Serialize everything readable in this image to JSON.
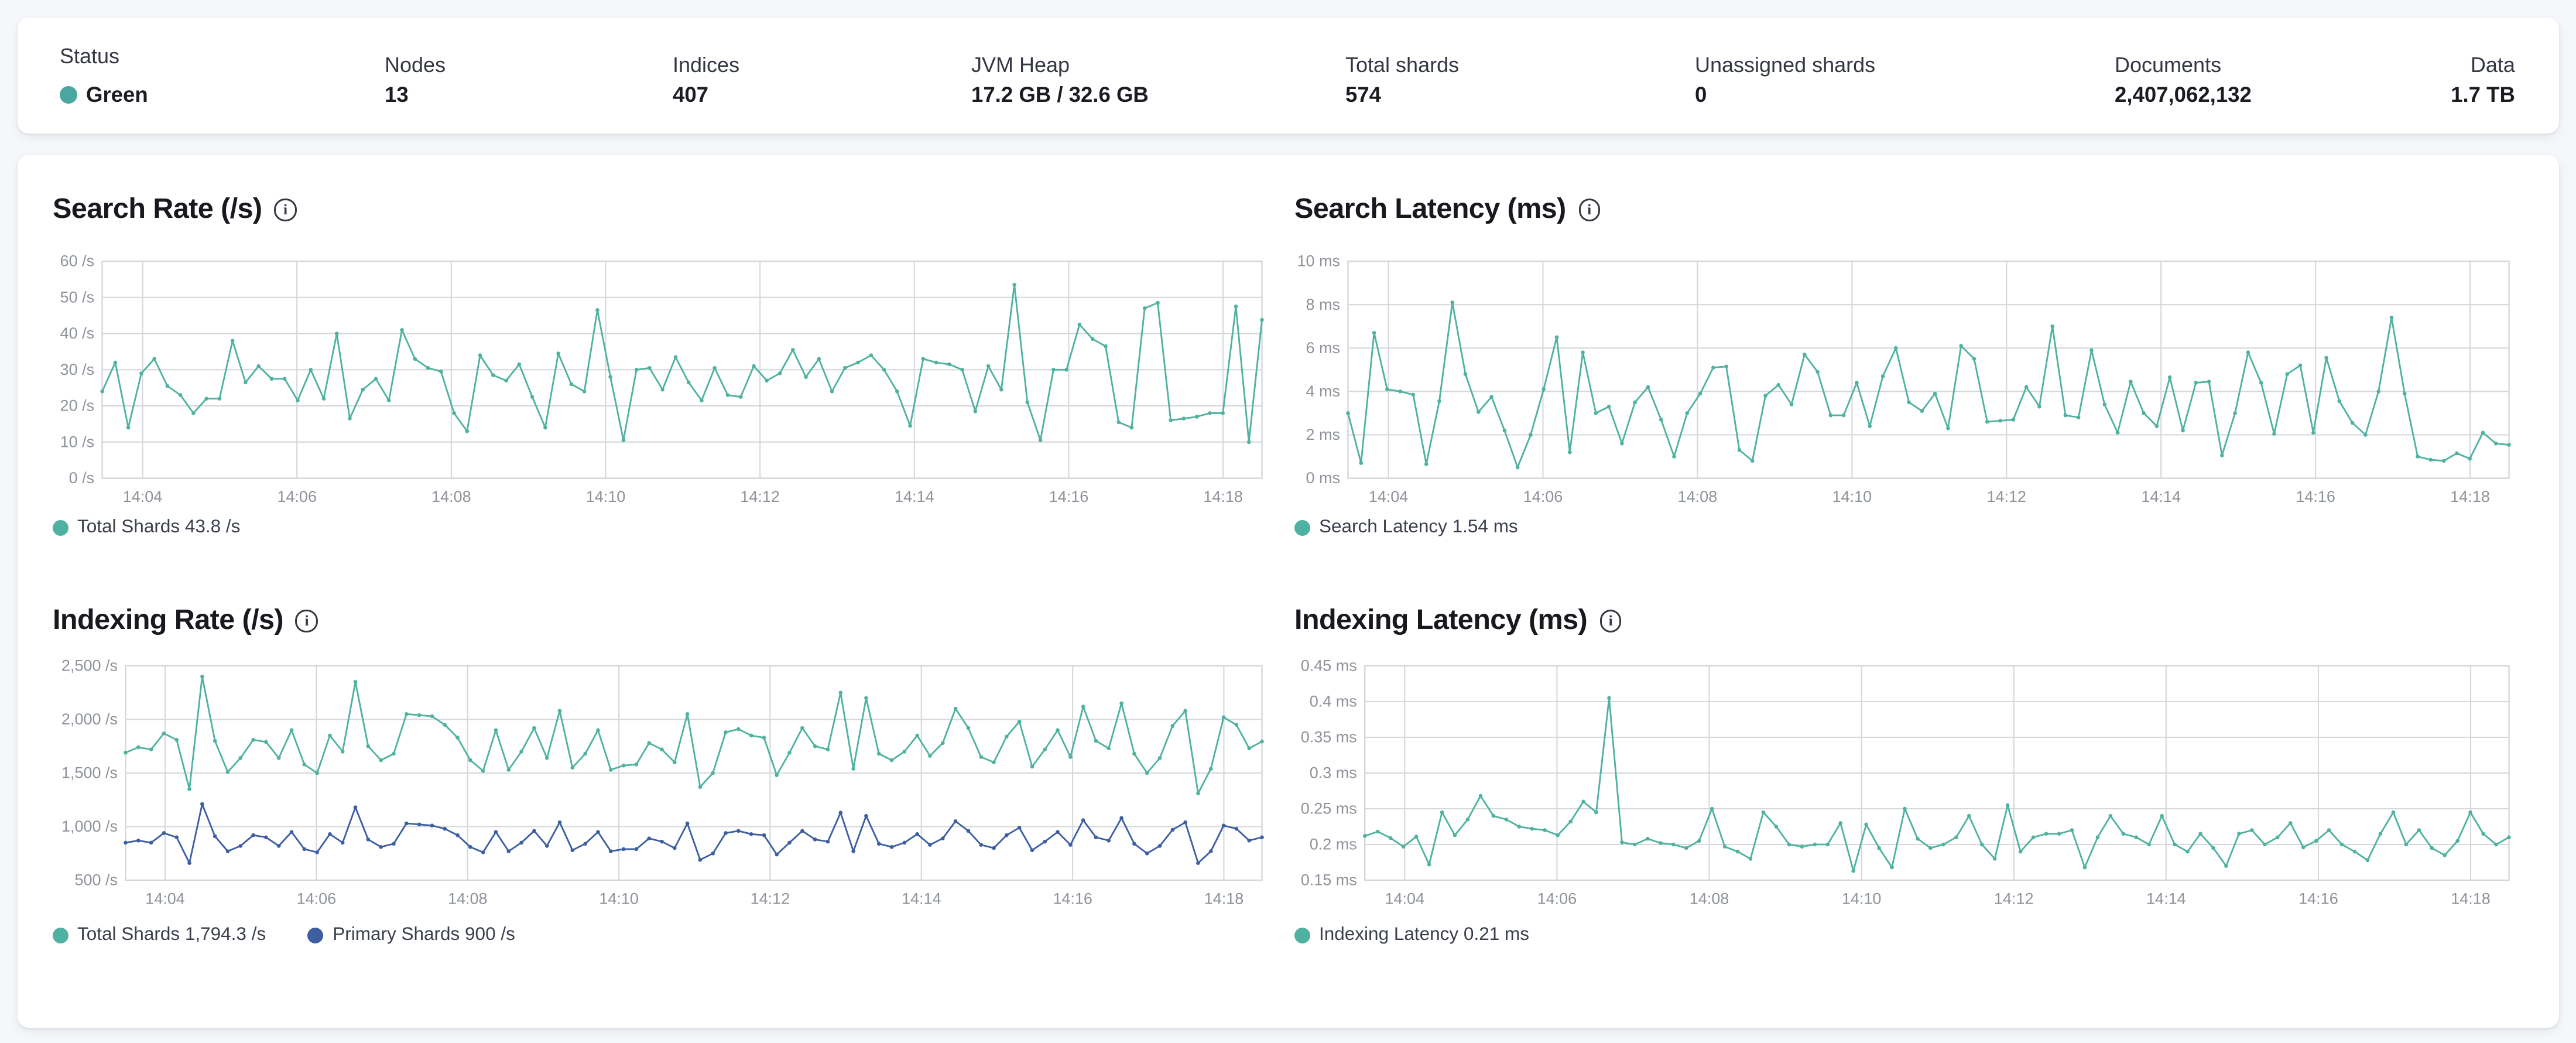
{
  "cluster_stats": {
    "items": [
      {
        "label": "Status",
        "value": "Green",
        "type": "health",
        "dot_color": "#4aa7a0"
      },
      {
        "label": "Nodes",
        "value": "13"
      },
      {
        "label": "Indices",
        "value": "407"
      },
      {
        "label": "JVM Heap",
        "value": "17.2 GB / 32.6 GB"
      },
      {
        "label": "Total shards",
        "value": "574"
      },
      {
        "label": "Unassigned shards",
        "value": "0"
      },
      {
        "label": "Documents",
        "value": "2,407,062,132"
      },
      {
        "label": "Data",
        "value": "1.7 TB"
      }
    ]
  },
  "colors": {
    "teal": "#4fb2a0",
    "blue": "#3d5fa2",
    "health_green": "#4aa7a0",
    "grid": "#d5d7da",
    "axis_text": "#8e9299",
    "page_bg": "#f5f7fa",
    "panel_bg": "#ffffff"
  },
  "chart_data": [
    {
      "id": "search-rate",
      "type": "line",
      "title": "Search Rate (/s)",
      "info_icon": "i",
      "ylim": [
        0,
        60
      ],
      "y_ticks": [
        {
          "v": 60,
          "label": "60 /s"
        },
        {
          "v": 50,
          "label": "50 /s"
        },
        {
          "v": 40,
          "label": "40 /s"
        },
        {
          "v": 30,
          "label": "30 /s"
        },
        {
          "v": 20,
          "label": "20 /s"
        },
        {
          "v": 10,
          "label": "10 /s"
        },
        {
          "v": 0,
          "label": "0 /s"
        }
      ],
      "x_tick_labels": [
        "14:04",
        "14:06",
        "14:08",
        "14:10",
        "14:12",
        "14:14",
        "14:16",
        "14:18"
      ],
      "series": [
        {
          "name": "Total Shards",
          "color": "#4fb2a0",
          "current": "43.8 /s",
          "values": [
            24,
            32,
            14,
            29,
            33,
            25.5,
            23,
            18,
            22,
            22,
            38,
            26.5,
            31,
            27.5,
            27.5,
            21.5,
            30,
            22,
            40,
            16.5,
            24.5,
            27.5,
            21.5,
            41,
            33,
            30.5,
            29.5,
            18,
            13,
            34,
            28.5,
            27,
            31.5,
            22.5,
            14,
            34.5,
            26,
            24,
            46.5,
            28,
            10.5,
            30,
            30.5,
            24.5,
            33.5,
            26.5,
            21.5,
            30.5,
            23,
            22.5,
            31,
            27,
            29,
            35.5,
            28,
            33,
            24,
            30.5,
            32,
            34,
            30,
            24,
            14.5,
            33,
            32,
            31.5,
            30,
            18.5,
            31,
            24.5,
            53.5,
            21,
            10.5,
            30,
            30,
            42.5,
            38.5,
            36.5,
            15.5,
            14,
            47,
            48.5,
            16,
            16.5,
            17,
            18,
            18,
            47.5,
            10,
            43.8
          ]
        }
      ],
      "legend": [
        {
          "label": "Total Shards 43.8 /s",
          "color": "#4fb2a0"
        }
      ]
    },
    {
      "id": "search-latency",
      "type": "line",
      "title": "Search Latency (ms)",
      "info_icon": "i",
      "ylim": [
        0,
        10
      ],
      "y_ticks": [
        {
          "v": 10,
          "label": "10 ms"
        },
        {
          "v": 8,
          "label": "8 ms"
        },
        {
          "v": 6,
          "label": "6 ms"
        },
        {
          "v": 4,
          "label": "4 ms"
        },
        {
          "v": 2,
          "label": "2 ms"
        },
        {
          "v": 0,
          "label": "0 ms"
        }
      ],
      "x_tick_labels": [
        "14:04",
        "14:06",
        "14:08",
        "14:10",
        "14:12",
        "14:14",
        "14:16",
        "14:18"
      ],
      "series": [
        {
          "name": "Search Latency",
          "color": "#4fb2a0",
          "current": "1.54 ms",
          "values": [
            3,
            0.7,
            6.7,
            4.1,
            4.0,
            3.85,
            0.65,
            3.55,
            8.1,
            4.8,
            3.05,
            3.75,
            2.2,
            0.5,
            2.0,
            4.1,
            6.5,
            1.2,
            5.8,
            3.0,
            3.3,
            1.6,
            3.5,
            4.2,
            2.7,
            1.0,
            3.0,
            3.9,
            5.1,
            5.15,
            1.3,
            0.8,
            3.8,
            4.3,
            3.4,
            5.7,
            4.9,
            2.9,
            2.9,
            4.4,
            2.4,
            4.7,
            6.0,
            3.5,
            3.1,
            3.9,
            2.3,
            6.1,
            5.5,
            2.6,
            2.65,
            2.7,
            4.2,
            3.3,
            7.0,
            2.9,
            2.8,
            5.9,
            3.4,
            2.1,
            4.45,
            3.0,
            2.4,
            4.65,
            2.2,
            4.4,
            4.45,
            1.05,
            3.0,
            5.8,
            4.4,
            2.05,
            4.8,
            5.2,
            2.1,
            5.55,
            3.55,
            2.55,
            2.0,
            4.0,
            7.4,
            3.9,
            1.0,
            0.85,
            0.8,
            1.15,
            0.9,
            2.1,
            1.6,
            1.54
          ]
        }
      ],
      "legend": [
        {
          "label": "Search Latency 1.54 ms",
          "color": "#4fb2a0"
        }
      ]
    },
    {
      "id": "indexing-rate",
      "type": "line",
      "title": "Indexing Rate (/s)",
      "info_icon": "i",
      "ylim": [
        500,
        2500
      ],
      "y_ticks": [
        {
          "v": 2500,
          "label": "2,500 /s"
        },
        {
          "v": 2000,
          "label": "2,000 /s"
        },
        {
          "v": 1500,
          "label": "1,500 /s"
        },
        {
          "v": 1000,
          "label": "1,000 /s"
        },
        {
          "v": 500,
          "label": "500 /s"
        }
      ],
      "x_tick_labels": [
        "14:04",
        "14:06",
        "14:08",
        "14:10",
        "14:12",
        "14:14",
        "14:16",
        "14:18"
      ],
      "series": [
        {
          "name": "Total Shards",
          "color": "#4fb2a0",
          "current": "1,794.3 /s",
          "values": [
            1690,
            1740,
            1720,
            1870,
            1810,
            1350,
            2400,
            1800,
            1510,
            1640,
            1810,
            1790,
            1640,
            1900,
            1580,
            1500,
            1850,
            1700,
            2350,
            1750,
            1620,
            1680,
            2050,
            2040,
            2030,
            1950,
            1830,
            1620,
            1520,
            1900,
            1530,
            1700,
            1920,
            1640,
            2080,
            1550,
            1680,
            1900,
            1530,
            1570,
            1580,
            1780,
            1720,
            1600,
            2050,
            1370,
            1500,
            1880,
            1910,
            1850,
            1830,
            1480,
            1690,
            1920,
            1750,
            1720,
            2250,
            1540,
            2200,
            1680,
            1620,
            1700,
            1850,
            1660,
            1780,
            2100,
            1920,
            1650,
            1600,
            1840,
            1980,
            1560,
            1720,
            1900,
            1650,
            2120,
            1800,
            1730,
            2150,
            1680,
            1500,
            1640,
            1940,
            2080,
            1310,
            1540,
            2020,
            1950,
            1730,
            1794.3
          ]
        },
        {
          "name": "Primary Shards",
          "color": "#3d5fa2",
          "current": "900 /s",
          "values": [
            850,
            870,
            850,
            940,
            900,
            660,
            1210,
            910,
            770,
            820,
            920,
            900,
            820,
            950,
            790,
            760,
            930,
            850,
            1180,
            880,
            810,
            840,
            1030,
            1020,
            1010,
            980,
            920,
            810,
            760,
            950,
            770,
            850,
            960,
            820,
            1040,
            780,
            840,
            950,
            770,
            790,
            790,
            890,
            860,
            800,
            1030,
            690,
            750,
            940,
            960,
            930,
            920,
            740,
            850,
            960,
            880,
            860,
            1130,
            770,
            1100,
            840,
            810,
            850,
            930,
            830,
            890,
            1050,
            960,
            830,
            800,
            920,
            990,
            780,
            860,
            950,
            830,
            1060,
            900,
            870,
            1080,
            840,
            750,
            820,
            970,
            1040,
            660,
            770,
            1010,
            980,
            870,
            900
          ]
        }
      ],
      "legend": [
        {
          "label": "Total Shards 1,794.3 /s",
          "color": "#4fb2a0"
        },
        {
          "label": "Primary Shards 900 /s",
          "color": "#3d5fa2"
        }
      ]
    },
    {
      "id": "indexing-latency",
      "type": "line",
      "title": "Indexing Latency (ms)",
      "info_icon": "i",
      "ylim": [
        0.15,
        0.45
      ],
      "y_ticks": [
        {
          "v": 0.45,
          "label": "0.45 ms"
        },
        {
          "v": 0.4,
          "label": "0.4 ms"
        },
        {
          "v": 0.35,
          "label": "0.35 ms"
        },
        {
          "v": 0.3,
          "label": "0.3 ms"
        },
        {
          "v": 0.25,
          "label": "0.25 ms"
        },
        {
          "v": 0.2,
          "label": "0.2 ms"
        },
        {
          "v": 0.15,
          "label": "0.15 ms"
        }
      ],
      "x_tick_labels": [
        "14:04",
        "14:06",
        "14:08",
        "14:10",
        "14:12",
        "14:14",
        "14:16",
        "14:18"
      ],
      "series": [
        {
          "name": "Indexing Latency",
          "color": "#4fb2a0",
          "current": "0.21 ms",
          "values": [
            0.212,
            0.218,
            0.209,
            0.197,
            0.211,
            0.172,
            0.245,
            0.213,
            0.235,
            0.268,
            0.24,
            0.235,
            0.225,
            0.222,
            0.22,
            0.213,
            0.232,
            0.26,
            0.245,
            0.405,
            0.203,
            0.2,
            0.208,
            0.202,
            0.2,
            0.195,
            0.205,
            0.25,
            0.197,
            0.19,
            0.18,
            0.245,
            0.225,
            0.2,
            0.197,
            0.2,
            0.2,
            0.23,
            0.163,
            0.228,
            0.195,
            0.168,
            0.25,
            0.208,
            0.195,
            0.2,
            0.21,
            0.24,
            0.2,
            0.18,
            0.255,
            0.19,
            0.21,
            0.215,
            0.215,
            0.22,
            0.168,
            0.21,
            0.24,
            0.215,
            0.21,
            0.2,
            0.24,
            0.2,
            0.19,
            0.215,
            0.195,
            0.17,
            0.215,
            0.22,
            0.2,
            0.21,
            0.23,
            0.196,
            0.205,
            0.22,
            0.2,
            0.19,
            0.178,
            0.215,
            0.245,
            0.2,
            0.22,
            0.195,
            0.185,
            0.205,
            0.245,
            0.215,
            0.2,
            0.21
          ]
        }
      ],
      "legend": [
        {
          "label": "Indexing Latency 0.21 ms",
          "color": "#4fb2a0"
        }
      ]
    }
  ]
}
